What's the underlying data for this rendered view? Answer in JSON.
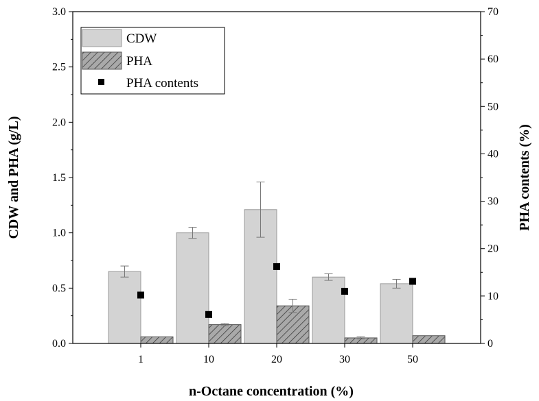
{
  "chart_data": {
    "type": "bar",
    "xlabel": "n-Octane concentration (%)",
    "ylabel": "CDW and PHA (g/L)",
    "y2label": "PHA contents (%)",
    "categories": [
      "1",
      "10",
      "20",
      "30",
      "50"
    ],
    "ylim": [
      0,
      3.0
    ],
    "y2lim": [
      0,
      70
    ],
    "yticks": [
      "0.0",
      "0.5",
      "1.0",
      "1.5",
      "2.0",
      "2.5",
      "3.0"
    ],
    "y2ticks": [
      "0",
      "10",
      "20",
      "30",
      "40",
      "50",
      "60",
      "70"
    ],
    "series": [
      {
        "name": "CDW",
        "kind": "bar",
        "values": [
          0.65,
          1.0,
          1.21,
          0.6,
          0.54
        ],
        "errors": [
          0.05,
          0.05,
          0.25,
          0.03,
          0.04
        ]
      },
      {
        "name": "PHA",
        "kind": "bar-hatched",
        "values": [
          0.06,
          0.17,
          0.34,
          0.05,
          0.07
        ],
        "errors": [
          0.0,
          0.01,
          0.06,
          0.01,
          0.0
        ]
      },
      {
        "name": "PHA contents",
        "kind": "scatter",
        "axis": "right",
        "values": [
          10.2,
          6.1,
          16.2,
          11.0,
          13.1
        ]
      }
    ],
    "legend_position": "top-left",
    "colors": {
      "cdw_fill": "#d3d3d3",
      "cdw_stroke": "#9a9a9a",
      "pha_fill": "#a9a9a9",
      "pha_hatch": "#3c3c3c",
      "marker": "#000000"
    }
  }
}
